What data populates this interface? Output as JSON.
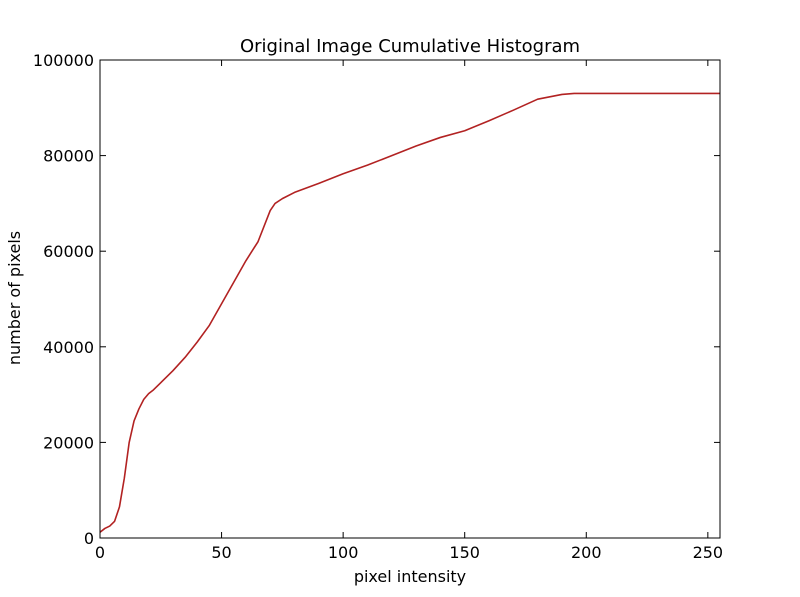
{
  "chart_data": {
    "type": "line",
    "title": "Original Image Cumulative Histogram",
    "xlabel": "pixel intensity",
    "ylabel": "number of pixels",
    "xlim": [
      0,
      255
    ],
    "ylim": [
      0,
      100000
    ],
    "xticks": [
      0,
      50,
      100,
      150,
      200,
      250
    ],
    "yticks": [
      0,
      20000,
      40000,
      60000,
      80000,
      100000
    ],
    "xtick_labels": [
      "0",
      "50",
      "100",
      "150",
      "200",
      "250"
    ],
    "ytick_labels": [
      "0",
      "20000",
      "40000",
      "60000",
      "80000",
      "100000"
    ],
    "grid": false,
    "series": [
      {
        "color": "#b22222",
        "x": [
          0,
          2,
          4,
          6,
          8,
          10,
          12,
          14,
          16,
          18,
          20,
          22,
          25,
          30,
          35,
          40,
          45,
          50,
          55,
          60,
          65,
          70,
          72,
          75,
          80,
          90,
          100,
          110,
          120,
          130,
          140,
          150,
          160,
          170,
          180,
          190,
          195,
          200,
          210,
          220,
          230,
          240,
          250,
          255
        ],
        "y": [
          1200,
          2000,
          2500,
          3500,
          6500,
          12500,
          20000,
          24500,
          27000,
          29000,
          30200,
          31000,
          32500,
          35000,
          37800,
          41000,
          44500,
          49000,
          53500,
          58000,
          62000,
          68500,
          70000,
          71000,
          72300,
          74200,
          76200,
          78000,
          80000,
          82000,
          83800,
          85200,
          87300,
          89500,
          91800,
          92800,
          93000,
          93000,
          93000,
          93000,
          93000,
          93000,
          93000,
          93000
        ]
      }
    ]
  }
}
